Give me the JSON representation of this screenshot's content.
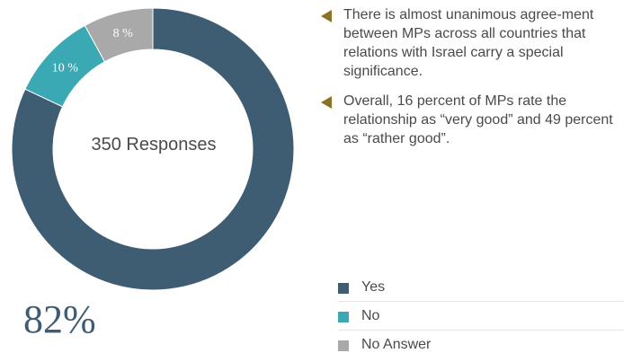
{
  "chart_data": {
    "type": "pie",
    "donut": true,
    "center_label": "350 Responses",
    "highlight_value": "82%",
    "slices": [
      {
        "name": "Yes",
        "value": 82,
        "color": "#3e5d72"
      },
      {
        "name": "No",
        "value": 10,
        "color": "#3aa9b4"
      },
      {
        "name": "No Answer",
        "value": 8,
        "color": "#a9a9a9"
      }
    ],
    "slice_labels": [
      "",
      "10 %",
      "8 %"
    ],
    "legend_position": "bottom-right"
  },
  "notes": [
    "There is almost unanimous agree-ment between MPs across all countries that relations with Israel carry a special significance.",
    "Overall, 16 percent of MPs rate the relationship as “very good” and 49 percent as “rather good”."
  ],
  "colors": {
    "arrow": "#8a7226"
  }
}
